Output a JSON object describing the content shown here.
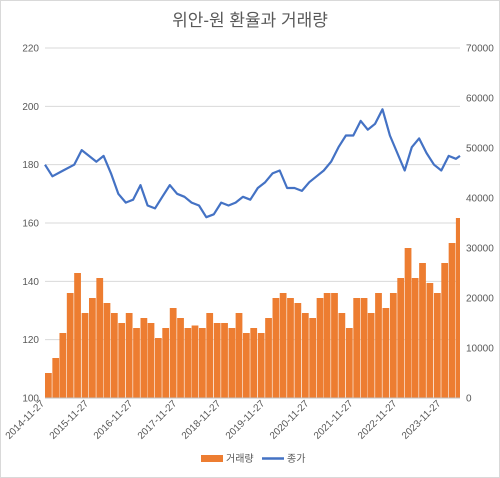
{
  "chart_data": {
    "type": "bar+line",
    "title": "위안-원 환율과 거래량",
    "x_dates": [
      "2014-11-27",
      "2015-11-27",
      "2016-11-27",
      "2017-11-27",
      "2018-11-27",
      "2019-11-27",
      "2020-11-27",
      "2021-11-27",
      "2022-11-27",
      "2023-11-27"
    ],
    "x_range": [
      "2014-11-27",
      "2024-04-30"
    ],
    "y_left": {
      "ticks": [
        "100",
        "120",
        "140",
        "160",
        "180",
        "200",
        "220"
      ],
      "min": 100,
      "max": 220
    },
    "y_right": {
      "ticks": [
        "0",
        "10000",
        "20000",
        "30000",
        "40000",
        "50000",
        "60000",
        "70000"
      ],
      "min": 0,
      "max": 70000
    },
    "legend": {
      "position": "bottom",
      "items": [
        {
          "name": "거래량",
          "color": "#ED7D31",
          "kind": "bar"
        },
        {
          "name": "종가",
          "color": "#4472C4",
          "kind": "line"
        }
      ]
    },
    "series": [
      {
        "name": "거래량",
        "type": "bar",
        "axis": "right",
        "color": "#ED7D31",
        "x": [
          "2014-11-27",
          "2015-01-27",
          "2015-03-27",
          "2015-05-27",
          "2015-07-27",
          "2015-09-27",
          "2015-11-27",
          "2016-01-27",
          "2016-03-27",
          "2016-05-27",
          "2016-07-27",
          "2016-09-27",
          "2016-11-27",
          "2017-01-27",
          "2017-03-27",
          "2017-05-27",
          "2017-07-27",
          "2017-09-27",
          "2017-11-27",
          "2018-01-27",
          "2018-03-27",
          "2018-05-27",
          "2018-07-27",
          "2018-09-27",
          "2018-11-27",
          "2019-01-27",
          "2019-03-27",
          "2019-05-27",
          "2019-07-27",
          "2019-09-27",
          "2019-11-27",
          "2020-01-27",
          "2020-03-27",
          "2020-05-27",
          "2020-07-27",
          "2020-09-27",
          "2020-11-27",
          "2021-01-27",
          "2021-03-27",
          "2021-05-27",
          "2021-07-27",
          "2021-09-27",
          "2021-11-27",
          "2022-01-27",
          "2022-03-27",
          "2022-05-27",
          "2022-07-27",
          "2022-09-27",
          "2022-11-27",
          "2023-01-27",
          "2023-03-27",
          "2023-05-27",
          "2023-07-27",
          "2023-09-27",
          "2023-11-27",
          "2024-01-27",
          "2024-03-27"
        ],
        "values": [
          5000,
          8000,
          13000,
          21000,
          25000,
          17000,
          20000,
          24000,
          19000,
          17000,
          15000,
          17000,
          14000,
          16000,
          15000,
          12000,
          14000,
          18000,
          16000,
          14000,
          14500,
          14000,
          17000,
          15000,
          15000,
          14000,
          17000,
          13000,
          14000,
          13000,
          16000,
          20000,
          21000,
          20000,
          19000,
          17000,
          16000,
          20000,
          21000,
          21000,
          17000,
          14000,
          20000,
          20000,
          17000,
          21000,
          18000,
          21000,
          24000,
          30000,
          24000,
          27000,
          23000,
          21000,
          27000,
          31000,
          36000
        ]
      },
      {
        "name": "종가",
        "type": "line",
        "axis": "left",
        "color": "#4472C4",
        "x": [
          "2014-11-27",
          "2015-01-27",
          "2015-04-27",
          "2015-07-27",
          "2015-09-27",
          "2015-11-27",
          "2016-01-27",
          "2016-03-27",
          "2016-05-27",
          "2016-07-27",
          "2016-09-27",
          "2016-11-27",
          "2017-01-27",
          "2017-03-27",
          "2017-05-27",
          "2017-07-27",
          "2017-09-27",
          "2017-11-27",
          "2018-01-27",
          "2018-03-27",
          "2018-05-27",
          "2018-07-27",
          "2018-09-27",
          "2018-11-27",
          "2019-01-27",
          "2019-03-27",
          "2019-05-27",
          "2019-07-27",
          "2019-09-27",
          "2019-11-27",
          "2020-01-27",
          "2020-03-27",
          "2020-05-27",
          "2020-07-27",
          "2020-09-27",
          "2020-11-27",
          "2021-01-27",
          "2021-03-27",
          "2021-05-27",
          "2021-07-27",
          "2021-09-27",
          "2021-11-27",
          "2022-01-27",
          "2022-03-27",
          "2022-05-27",
          "2022-07-27",
          "2022-09-27",
          "2022-11-27",
          "2023-01-27",
          "2023-03-27",
          "2023-05-27",
          "2023-07-27",
          "2023-09-27",
          "2023-11-27",
          "2024-01-27",
          "2024-03-27",
          "2024-04-30"
        ],
        "values": [
          180,
          176,
          178,
          180,
          185,
          183,
          181,
          183,
          177,
          170,
          167,
          168,
          173,
          166,
          165,
          169,
          173,
          170,
          169,
          167,
          166,
          162,
          163,
          167,
          166,
          167,
          169,
          168,
          172,
          174,
          177,
          178,
          172,
          172,
          171,
          174,
          176,
          178,
          181,
          186,
          190,
          190,
          195,
          192,
          194,
          199,
          190,
          184,
          178,
          186,
          189,
          184,
          180,
          178,
          183,
          182,
          183
        ]
      }
    ]
  }
}
